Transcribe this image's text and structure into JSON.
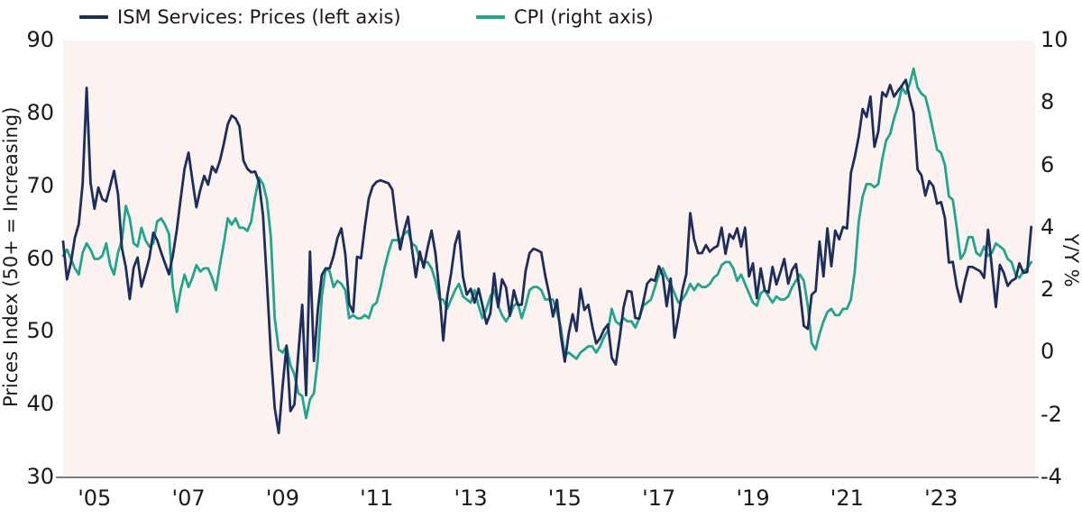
{
  "legend": [
    {
      "label": "ISM Services: Prices (left axis)",
      "color": "#1b2e5d"
    },
    {
      "label": "CPI (right axis)",
      "color": "#1fa78d"
    }
  ],
  "colors": {
    "plot_background": "#fcf2f0",
    "page_background": "#ffffff",
    "axis_line": "#7e7e7e",
    "text": "#1a1a1a",
    "ism_line": "#1b2e5d",
    "cpi_line": "#1fa78d"
  },
  "chart_data": {
    "type": "line",
    "title": "",
    "frequency": "monthly",
    "x_start": "2004-05",
    "x_end": "2024-12",
    "x_tick_years": [
      2005,
      2007,
      2009,
      2011,
      2013,
      2015,
      2017,
      2019,
      2021,
      2023
    ],
    "x_tick_labels": [
      "'05",
      "'07",
      "'09",
      "'11",
      "'13",
      "'15",
      "'17",
      "'19",
      "'21",
      "'23"
    ],
    "left_axis": {
      "label": "Prices Index (50+ = Increasing)",
      "range": [
        30,
        90
      ],
      "ticks": [
        90,
        80,
        70,
        60,
        50,
        40,
        30
      ]
    },
    "right_axis": {
      "label": "Y/Y %",
      "range": [
        -4,
        10
      ],
      "ticks": [
        10,
        8,
        6,
        4,
        2,
        0,
        -2,
        -4
      ]
    },
    "grid": false,
    "legend_position": "top",
    "series": [
      {
        "name": "ISM Services: Prices (left axis)",
        "axis": "left",
        "color": "#1b2e5d",
        "values": [
          62.4,
          57.2,
          59.5,
          62.9,
          64.8,
          70.4,
          83.5,
          70.5,
          66.9,
          69.8,
          68.2,
          67.9,
          70.0,
          72.1,
          68.9,
          61.5,
          58.9,
          54.5,
          58.8,
          60.2,
          56.2,
          58.1,
          60.1,
          63.6,
          62.6,
          60.9,
          59.4,
          57.9,
          60.5,
          64.0,
          68.3,
          72.4,
          74.6,
          70.8,
          67.1,
          69.5,
          71.4,
          70.2,
          72.7,
          71.9,
          73.5,
          75.8,
          78.5,
          79.7,
          79.3,
          78.2,
          73.5,
          72.4,
          71.9,
          72.0,
          70.5,
          66.0,
          57.0,
          47.0,
          39.5,
          36.1,
          42.5,
          48.1,
          39.1,
          40.0,
          46.9,
          53.7,
          41.3,
          61.0,
          46.0,
          53.0,
          57.8,
          58.7,
          58.7,
          60.4,
          62.9,
          64.2,
          60.6,
          53.8,
          52.7,
          60.3,
          60.1,
          64.5,
          68.3,
          70.0,
          70.6,
          70.8,
          70.6,
          70.4,
          69.5,
          65.0,
          61.3,
          63.9,
          65.8,
          61.4,
          57.5,
          61.0,
          58.8,
          61.5,
          63.9,
          60.8,
          55.6,
          48.8,
          54.9,
          58.0,
          62.0,
          63.8,
          57.6,
          55.1,
          55.9,
          54.0,
          55.9,
          53.6,
          51.1,
          52.5,
          58.0,
          53.4,
          57.2,
          56.1,
          52.2,
          55.7,
          53.7,
          53.7,
          58.3,
          60.8,
          61.4,
          61.2,
          60.9,
          57.7,
          55.2,
          52.1,
          54.4,
          49.5,
          45.9,
          49.7,
          52.4,
          50.1,
          55.9,
          53.0,
          53.7,
          50.8,
          48.4,
          49.1,
          50.3,
          51.0,
          46.4,
          45.5,
          49.1,
          53.4,
          55.6,
          55.5,
          51.9,
          51.8,
          54.0,
          56.6,
          57.2,
          57.0,
          59.0,
          57.7,
          53.5,
          57.3,
          49.2,
          52.1,
          55.7,
          57.9,
          66.3,
          62.7,
          60.8,
          60.8,
          61.9,
          61.0,
          61.5,
          61.8,
          64.3,
          60.7,
          63.4,
          62.8,
          64.2,
          61.7,
          64.3,
          57.6,
          59.4,
          54.6,
          58.7,
          55.7,
          55.4,
          58.9,
          56.5,
          58.2,
          60.0,
          56.6,
          58.5,
          59.3,
          55.5,
          50.8,
          50.4,
          55.1,
          55.6,
          62.4,
          57.6,
          64.2,
          59.0,
          63.9,
          62.7,
          64.4,
          64.2,
          71.8,
          74.0,
          76.8,
          80.6,
          79.5,
          82.3,
          75.4,
          77.5,
          82.9,
          82.3,
          83.9,
          82.3,
          83.1,
          83.8,
          84.6,
          82.1,
          80.1,
          72.3,
          71.5,
          68.7,
          70.7,
          70.0,
          67.6,
          67.8,
          65.6,
          59.5,
          59.6,
          56.2,
          54.1,
          56.8,
          58.9,
          58.9,
          58.6,
          58.3,
          57.4,
          64.0,
          58.6,
          53.4,
          59.2,
          58.1,
          56.3,
          57.0,
          57.3,
          59.4,
          58.1,
          58.2,
          64.4
        ]
      },
      {
        "name": "CPI (right axis)",
        "axis": "right",
        "color": "#1fa78d",
        "values": [
          3.1,
          3.3,
          3.0,
          2.7,
          2.5,
          3.2,
          3.5,
          3.3,
          3.0,
          3.0,
          3.1,
          3.5,
          2.8,
          2.5,
          3.2,
          3.6,
          4.7,
          4.3,
          3.5,
          3.4,
          4.0,
          3.6,
          3.4,
          3.5,
          4.2,
          4.3,
          4.1,
          3.8,
          2.1,
          1.3,
          2.0,
          2.5,
          2.1,
          2.4,
          2.8,
          2.6,
          2.7,
          2.7,
          2.4,
          2.0,
          2.8,
          3.5,
          4.3,
          4.1,
          4.3,
          4.0,
          4.0,
          3.9,
          4.2,
          5.0,
          5.6,
          5.4,
          4.9,
          3.7,
          1.1,
          0.1,
          0.0,
          0.2,
          -0.4,
          -0.7,
          -1.3,
          -1.4,
          -2.1,
          -1.5,
          -1.3,
          -0.2,
          1.8,
          2.7,
          2.6,
          2.1,
          2.3,
          2.2,
          2.0,
          1.1,
          1.2,
          1.1,
          1.1,
          1.2,
          1.1,
          1.5,
          1.6,
          2.1,
          2.7,
          3.2,
          3.6,
          3.6,
          3.6,
          3.8,
          3.9,
          3.5,
          3.4,
          3.0,
          2.9,
          2.9,
          2.7,
          2.3,
          1.7,
          1.7,
          1.4,
          1.7,
          2.0,
          2.2,
          1.8,
          1.7,
          1.6,
          2.0,
          1.5,
          1.1,
          1.4,
          1.8,
          2.0,
          1.5,
          1.2,
          1.0,
          1.2,
          1.5,
          1.6,
          1.1,
          1.5,
          2.0,
          2.1,
          2.1,
          2.0,
          1.7,
          1.7,
          1.7,
          1.3,
          0.8,
          -0.1,
          0.0,
          -0.1,
          -0.2,
          0.0,
          0.1,
          0.2,
          0.2,
          0.0,
          0.2,
          0.5,
          0.7,
          1.4,
          1.0,
          0.9,
          1.1,
          1.0,
          1.0,
          0.8,
          1.1,
          1.5,
          1.6,
          1.7,
          2.1,
          2.5,
          2.7,
          2.4,
          2.2,
          1.9,
          1.6,
          1.7,
          1.9,
          2.2,
          2.0,
          2.2,
          2.1,
          2.1,
          2.2,
          2.4,
          2.5,
          2.8,
          2.9,
          2.9,
          2.7,
          2.3,
          2.5,
          2.2,
          1.9,
          1.6,
          1.5,
          1.9,
          2.0,
          1.8,
          1.6,
          1.8,
          1.7,
          1.7,
          1.8,
          2.1,
          2.3,
          2.5,
          2.3,
          1.5,
          0.3,
          0.1,
          0.6,
          1.0,
          1.3,
          1.4,
          1.2,
          1.2,
          1.4,
          1.4,
          1.7,
          2.6,
          4.2,
          5.0,
          5.4,
          5.4,
          5.3,
          5.4,
          6.2,
          6.8,
          7.0,
          7.5,
          7.9,
          8.5,
          8.3,
          8.6,
          9.1,
          8.5,
          8.3,
          8.2,
          7.7,
          7.1,
          6.5,
          6.4,
          6.0,
          5.0,
          4.9,
          4.0,
          3.0,
          3.2,
          3.7,
          3.7,
          3.2,
          3.1,
          3.4,
          3.1,
          3.2,
          3.5,
          3.4,
          3.3,
          3.0,
          2.9,
          2.5,
          2.4,
          2.6,
          2.7,
          2.9
        ]
      }
    ]
  }
}
